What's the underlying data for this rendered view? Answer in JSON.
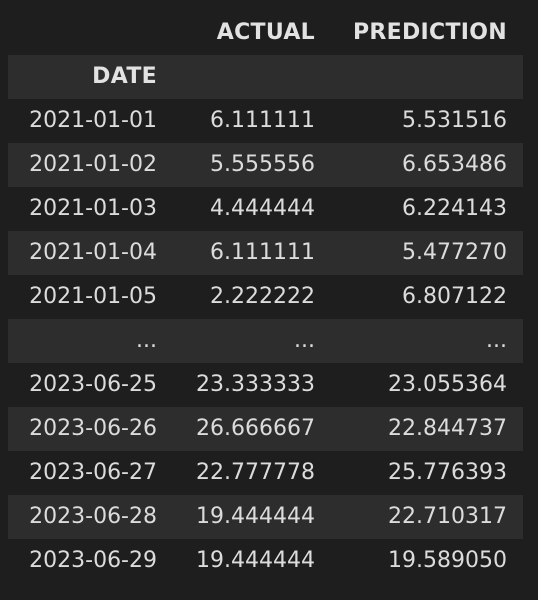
{
  "table": {
    "columns": [
      "ACTUAL",
      "PREDICTION"
    ],
    "index_name": "DATE",
    "rows": [
      {
        "date": "2021-01-01",
        "actual": "6.111111",
        "prediction": "5.531516"
      },
      {
        "date": "2021-01-02",
        "actual": "5.555556",
        "prediction": "6.653486"
      },
      {
        "date": "2021-01-03",
        "actual": "4.444444",
        "prediction": "6.224143"
      },
      {
        "date": "2021-01-04",
        "actual": "6.111111",
        "prediction": "5.477270"
      },
      {
        "date": "2021-01-05",
        "actual": "2.222222",
        "prediction": "6.807122"
      },
      {
        "date": "...",
        "actual": "...",
        "prediction": "..."
      },
      {
        "date": "2023-06-25",
        "actual": "23.333333",
        "prediction": "23.055364"
      },
      {
        "date": "2023-06-26",
        "actual": "26.666667",
        "prediction": "22.844737"
      },
      {
        "date": "2023-06-27",
        "actual": "22.777778",
        "prediction": "25.776393"
      },
      {
        "date": "2023-06-28",
        "actual": "19.444444",
        "prediction": "22.710317"
      },
      {
        "date": "2023-06-29",
        "actual": "19.444444",
        "prediction": "19.589050"
      }
    ]
  },
  "colors": {
    "background": "#1e1e1e",
    "stripe": "#2d2d2d",
    "text": "#dcdcdc"
  }
}
